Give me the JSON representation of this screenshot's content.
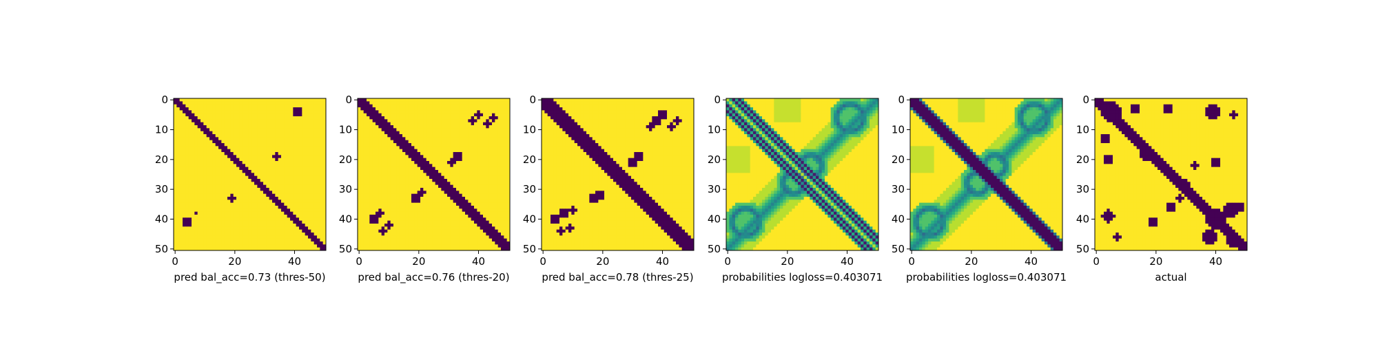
{
  "figure": {
    "background": "#ffffff",
    "colormap": "viridis",
    "low_color": "#440154",
    "high_color": "#fde725"
  },
  "chart_data": [
    {
      "type": "heatmap",
      "title": "",
      "xlabel": "pred bal_acc=0.73 (thres-50)",
      "ylabel": "",
      "grid_size": 51,
      "xticks": [
        0,
        20,
        40
      ],
      "yticks": [
        0,
        10,
        20,
        30,
        40,
        50
      ],
      "values": "binary",
      "diagonal_band": {
        "from": 0,
        "to": 50,
        "half_width": 1
      },
      "blobs": [
        {
          "x": 41,
          "y": 4,
          "r": 1.2
        },
        {
          "x": 34,
          "y": 19,
          "r": 0.8
        },
        {
          "x": 19,
          "y": 33,
          "r": 0.8
        },
        {
          "x": 4,
          "y": 41,
          "r": 1.2
        },
        {
          "x": 7,
          "y": 38,
          "r": 0.6
        }
      ]
    },
    {
      "type": "heatmap",
      "title": "",
      "xlabel": "pred bal_acc=0.76 (thres-20)",
      "ylabel": "",
      "grid_size": 51,
      "xticks": [
        0,
        20,
        40
      ],
      "yticks": [
        0,
        10,
        20,
        30,
        40,
        50
      ],
      "values": "binary",
      "diagonal_band": {
        "from": 0,
        "to": 50,
        "half_width": 2
      },
      "blobs": [
        {
          "x": 40,
          "y": 5,
          "r": 1.0
        },
        {
          "x": 38,
          "y": 7,
          "r": 1.0
        },
        {
          "x": 45,
          "y": 6,
          "r": 0.8
        },
        {
          "x": 43,
          "y": 8,
          "r": 0.8
        },
        {
          "x": 33,
          "y": 19,
          "r": 1.2
        },
        {
          "x": 31,
          "y": 21,
          "r": 1.0
        },
        {
          "x": 19,
          "y": 33,
          "r": 1.2
        },
        {
          "x": 21,
          "y": 31,
          "r": 1.0
        },
        {
          "x": 5,
          "y": 40,
          "r": 1.2
        },
        {
          "x": 7,
          "y": 38,
          "r": 1.0
        },
        {
          "x": 8,
          "y": 44,
          "r": 0.8
        },
        {
          "x": 10,
          "y": 42,
          "r": 0.8
        }
      ]
    },
    {
      "type": "heatmap",
      "title": "",
      "xlabel": "pred bal_acc=0.78 (thres-25)",
      "ylabel": "",
      "grid_size": 51,
      "xticks": [
        0,
        20,
        40
      ],
      "yticks": [
        0,
        10,
        20,
        30,
        40,
        50
      ],
      "values": "binary",
      "diagonal_band": {
        "from": 0,
        "to": 50,
        "half_width": 3
      },
      "blobs": [
        {
          "x": 40,
          "y": 5,
          "r": 1.3
        },
        {
          "x": 38,
          "y": 7,
          "r": 1.3
        },
        {
          "x": 36,
          "y": 9,
          "r": 1.0
        },
        {
          "x": 45,
          "y": 7,
          "r": 0.9
        },
        {
          "x": 43,
          "y": 9,
          "r": 0.9
        },
        {
          "x": 32,
          "y": 19,
          "r": 1.4
        },
        {
          "x": 30,
          "y": 21,
          "r": 1.2
        },
        {
          "x": 19,
          "y": 32,
          "r": 1.4
        },
        {
          "x": 17,
          "y": 33,
          "r": 1.2
        },
        {
          "x": 4,
          "y": 40,
          "r": 1.5
        },
        {
          "x": 7,
          "y": 38,
          "r": 1.3
        },
        {
          "x": 10,
          "y": 37,
          "r": 1.0
        },
        {
          "x": 6,
          "y": 44,
          "r": 0.9
        },
        {
          "x": 9,
          "y": 43,
          "r": 0.9
        }
      ]
    },
    {
      "type": "heatmap",
      "title": "",
      "xlabel": "probabilities logloss=0.403071",
      "ylabel": "",
      "grid_size": 51,
      "xticks": [
        0,
        20,
        40
      ],
      "yticks": [
        0,
        10,
        20,
        30,
        40,
        50
      ],
      "values": "continuous",
      "diagonal_lines": [
        2,
        4
      ],
      "anti_diagonal_arcs": true
    },
    {
      "type": "heatmap",
      "title": "",
      "xlabel": "probabilities logloss=0.403071",
      "ylabel": "",
      "grid_size": 51,
      "xticks": [
        0,
        20,
        40
      ],
      "yticks": [
        0,
        10,
        20,
        30,
        40,
        50
      ],
      "values": "continuous",
      "diagonal_band": {
        "from": 0,
        "to": 50,
        "half_width": 2
      },
      "anti_diagonal_arcs": true
    },
    {
      "type": "heatmap",
      "title": "",
      "xlabel": "actual",
      "ylabel": "",
      "grid_size": 51,
      "xticks": [
        0,
        20,
        40
      ],
      "yticks": [
        0,
        10,
        20,
        30,
        40,
        50
      ],
      "values": "binary",
      "diagonal_band": {
        "from": 0,
        "to": 50,
        "half_width": 2
      },
      "blobs": [
        {
          "x": 39,
          "y": 4,
          "r": 2.2
        },
        {
          "x": 5,
          "y": 4,
          "r": 3.0
        },
        {
          "x": 13,
          "y": 3,
          "r": 1.6
        },
        {
          "x": 24,
          "y": 3,
          "r": 1.2
        },
        {
          "x": 3,
          "y": 13,
          "r": 1.6
        },
        {
          "x": 4,
          "y": 20,
          "r": 1.6
        },
        {
          "x": 17,
          "y": 18,
          "r": 2.5
        },
        {
          "x": 40,
          "y": 21,
          "r": 1.3
        },
        {
          "x": 33,
          "y": 22,
          "r": 1.0
        },
        {
          "x": 30,
          "y": 28,
          "r": 1.0
        },
        {
          "x": 28,
          "y": 33,
          "r": 1.0
        },
        {
          "x": 25,
          "y": 36,
          "r": 1.2
        },
        {
          "x": 4,
          "y": 39,
          "r": 1.8
        },
        {
          "x": 7,
          "y": 46,
          "r": 1.0
        },
        {
          "x": 19,
          "y": 41,
          "r": 1.2
        },
        {
          "x": 40,
          "y": 40,
          "r": 3.0
        },
        {
          "x": 45,
          "y": 37,
          "r": 2.0
        },
        {
          "x": 48,
          "y": 36,
          "r": 1.6
        },
        {
          "x": 38,
          "y": 46,
          "r": 2.2
        },
        {
          "x": 46,
          "y": 47,
          "r": 2.2
        },
        {
          "x": 46,
          "y": 5,
          "r": 1.0
        }
      ]
    }
  ]
}
